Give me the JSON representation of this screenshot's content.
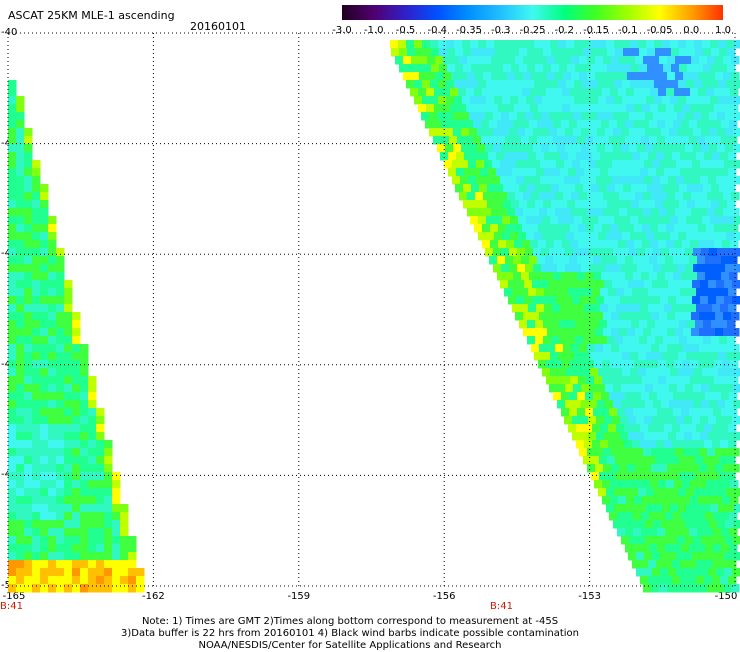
{
  "header": {
    "title": "ASCAT 25KM MLE-1 ascending",
    "date": "20160101"
  },
  "colorbar": {
    "labels": [
      "-3.0",
      "-1.0",
      "-0.5",
      "-0.4",
      "-0.35",
      "-0.3",
      "-0.25",
      "-0.2",
      "-0.15",
      "-0.1",
      "-0.05",
      "0.0",
      "1.0"
    ],
    "colors": [
      "#200020",
      "#500070",
      "#3020c8",
      "#0050ff",
      "#0090ff",
      "#20c0ff",
      "#40f8f0",
      "#00ff80",
      "#40ff20",
      "#a0ff00",
      "#ffff00",
      "#ffa000",
      "#ff3000"
    ]
  },
  "axes": {
    "lat_labels": [
      "-40",
      "-42",
      "-44",
      "-46",
      "-48",
      "-50"
    ],
    "lon_labels": [
      "-165",
      "-162",
      "-159",
      "-156",
      "-153",
      "-150"
    ],
    "lat_range": [
      -50,
      -40
    ],
    "lon_range": [
      -165,
      -150
    ]
  },
  "orbit_labels": [
    "B:41",
    "B:41"
  ],
  "notes": {
    "line1": "Note: 1) Times are GMT 2)Times along bottom correspond to measurement at -45S",
    "line2": "3)Data buffer is 22 hrs from 20160101 4) Black wind barbs indicate possible contamination",
    "line3": "NOAA/NESDIS/Center for Satellite Applications and Research"
  }
}
